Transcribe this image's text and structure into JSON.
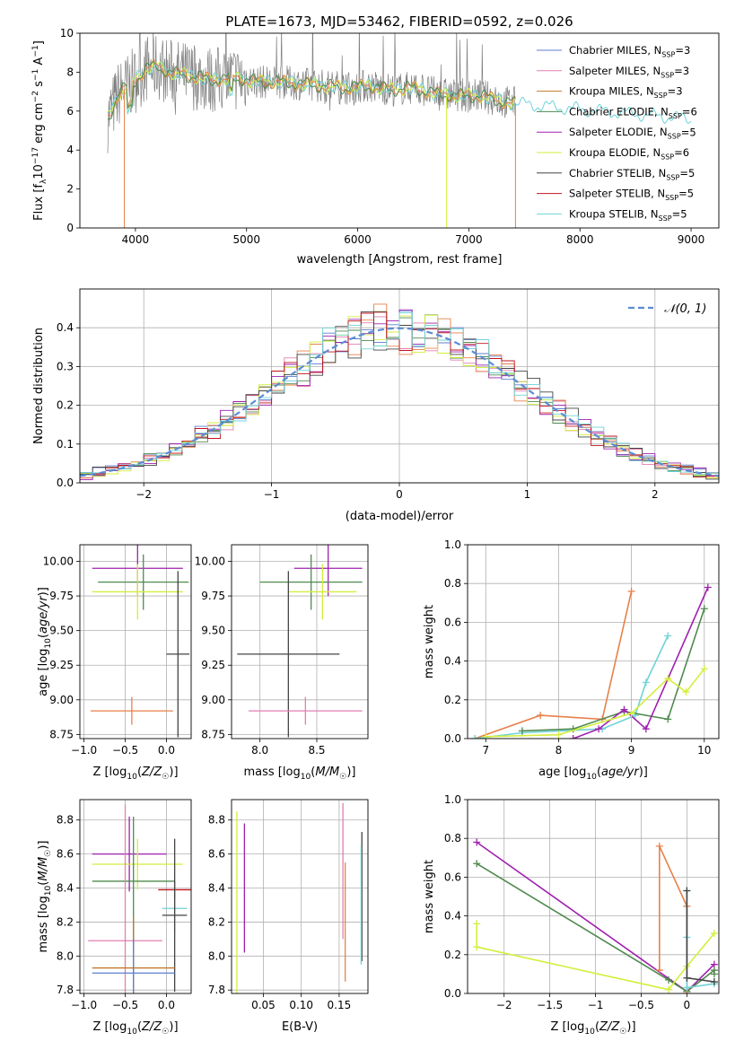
{
  "title": "PLATE=1673, MJD=53462, FIBERID=0592, z=0.026",
  "colors": {
    "chabrier_miles": "#5b7fd1",
    "salpeter_miles": "#e37fb0",
    "kroupa_miles": "#c0792a",
    "chabrier_elodie": "#4f8a4f",
    "salpeter_elodie": "#a020b0",
    "kroupa_elodie": "#d4ee3c",
    "chabrier_stelib": "#444444",
    "salpeter_stelib": "#c0141e",
    "kroupa_stelib": "#6fd3d6",
    "orange_mix": "#e8804a",
    "gauss": "#5a8cd4",
    "grid": "#b0b0b0"
  },
  "legend_spectrum": [
    {
      "text": "Chabrier MILES, N",
      "sub": "SSP",
      "tail": "=3"
    },
    {
      "text": "Salpeter MILES, N",
      "sub": "SSP",
      "tail": "=3"
    },
    {
      "text": "Kroupa MILES, N",
      "sub": "SSP",
      "tail": "=3"
    },
    {
      "text": "Chabrier ELODIE, N",
      "sub": "SSP",
      "tail": "=6"
    },
    {
      "text": "Salpeter ELODIE, N",
      "sub": "SSP",
      "tail": "=5"
    },
    {
      "text": "Kroupa ELODIE, N",
      "sub": "SSP",
      "tail": "=6"
    },
    {
      "text": "Chabrier STELIB, N",
      "sub": "SSP",
      "tail": "=5"
    },
    {
      "text": "Salpeter STELIB, N",
      "sub": "SSP",
      "tail": "=5"
    },
    {
      "text": "Kroupa STELIB, N",
      "sub": "SSP",
      "tail": "=5"
    }
  ],
  "legend_hist": "𝒩(0, 1)",
  "chart_data": [
    {
      "id": "spectrum",
      "type": "line",
      "xlabel": "wavelength [Angstrom, rest frame]",
      "ylabel": "Flux [f",
      "xlim": [
        3500,
        9250
      ],
      "ylim": [
        0,
        10
      ],
      "xticks": [
        4000,
        5000,
        6000,
        7000,
        8000,
        9000
      ],
      "yticks": [
        0,
        2,
        4,
        6,
        8,
        10
      ],
      "continuum": {
        "x": [
          3750,
          3850,
          4000,
          4100,
          4200,
          4300,
          4500,
          4700,
          4900,
          5100,
          5300,
          5500,
          5700,
          5900,
          6100,
          6300,
          6500,
          6700,
          6900,
          7100,
          7300,
          7420,
          7600,
          7800,
          8000,
          8200,
          8400,
          8600,
          8800,
          9000
        ],
        "y": [
          5.6,
          6.9,
          7.6,
          8.2,
          8.3,
          8.0,
          7.8,
          7.6,
          7.7,
          7.5,
          7.5,
          7.4,
          7.3,
          7.2,
          7.3,
          7.1,
          7.2,
          6.9,
          6.8,
          6.8,
          6.5,
          6.4,
          6.3,
          6.2,
          6.1,
          6.0,
          5.9,
          5.8,
          5.7,
          5.6
        ]
      }
    },
    {
      "id": "residual_hist",
      "type": "line",
      "xlabel": "(data-model)/error",
      "ylabel": "Normed distribution",
      "xlim": [
        -2.5,
        2.5
      ],
      "ylim": [
        0,
        0.5
      ],
      "xticks": [
        -2,
        -1,
        0,
        1,
        2
      ],
      "yticks": [
        0.0,
        0.1,
        0.2,
        0.3,
        0.4
      ]
    },
    {
      "id": "age_vs_Z",
      "type": "scatter",
      "xlabel": "Z [log10(Z/Z☉)]",
      "ylabel": "age  [log10(age/yr)]",
      "xlim": [
        -1.05,
        0.3
      ],
      "ylim": [
        8.72,
        10.12
      ],
      "xticks": [
        -1.0,
        -0.5,
        0.0
      ],
      "yticks": [
        8.75,
        9.0,
        9.25,
        9.5,
        9.75,
        10.0
      ],
      "points": [
        {
          "series": "salpeter_elodie",
          "x": -0.35,
          "y": 9.95,
          "xerr": 0.55,
          "yerr": 0.2
        },
        {
          "series": "chabrier_elodie",
          "x": -0.28,
          "y": 9.85,
          "xerr": 0.55,
          "yerr": 0.2
        },
        {
          "series": "kroupa_elodie",
          "x": -0.35,
          "y": 9.78,
          "xerr": 0.55,
          "yerr": 0.2
        },
        {
          "series": "chabrier_stelib",
          "x": 0.14,
          "y": 9.33,
          "xerr": 0.14,
          "yerr": 0.6
        },
        {
          "series": "orange_mix",
          "x": -0.42,
          "y": 8.92,
          "xerr": 0.5,
          "yerr": 0.1
        }
      ]
    },
    {
      "id": "age_vs_mass",
      "type": "scatter",
      "xlabel": "mass [log10(M/M☉)]",
      "ylabel": "",
      "xlim": [
        7.75,
        8.95
      ],
      "ylim": [
        8.72,
        10.12
      ],
      "xticks": [
        8.0,
        8.5
      ],
      "yticks": [
        8.75,
        9.0,
        9.25,
        9.5,
        9.75,
        10.0
      ],
      "points": [
        {
          "series": "salpeter_elodie",
          "x": 8.6,
          "y": 9.95,
          "xerr": 0.3,
          "yerr": 0.2
        },
        {
          "series": "chabrier_elodie",
          "x": 8.45,
          "y": 9.85,
          "xerr": 0.45,
          "yerr": 0.2
        },
        {
          "series": "kroupa_elodie",
          "x": 8.55,
          "y": 9.78,
          "xerr": 0.3,
          "yerr": 0.2
        },
        {
          "series": "chabrier_stelib",
          "x": 8.25,
          "y": 9.33,
          "xerr": 0.45,
          "yerr": 0.6
        },
        {
          "series": "salpeter_miles",
          "x": 8.4,
          "y": 8.92,
          "xerr": 0.5,
          "yerr": 0.1
        }
      ]
    },
    {
      "id": "massweight_vs_age",
      "type": "line",
      "xlabel": "age  [log10(age/yr)]",
      "ylabel": "mass weight",
      "xlim": [
        6.75,
        10.2
      ],
      "ylim": [
        0,
        1
      ],
      "xticks": [
        7,
        8,
        9,
        10
      ],
      "yticks": [
        0.0,
        0.2,
        0.4,
        0.6,
        0.8,
        1.0
      ],
      "series": [
        {
          "name": "orange_mix",
          "x": [
            6.85,
            7.75,
            8.6,
            9.0
          ],
          "y": [
            0.0,
            0.12,
            0.1,
            0.76
          ]
        },
        {
          "name": "kroupa_stelib",
          "x": [
            6.85,
            7.5,
            8.6,
            9.05,
            9.2,
            9.5
          ],
          "y": [
            0.0,
            0.03,
            0.05,
            0.12,
            0.29,
            0.53
          ]
        },
        {
          "name": "chabrier_elodie",
          "x": [
            7.5,
            8.2,
            8.9,
            9.5,
            10.0
          ],
          "y": [
            0.04,
            0.05,
            0.14,
            0.1,
            0.67
          ]
        },
        {
          "name": "salpeter_elodie",
          "x": [
            8.2,
            8.55,
            8.9,
            9.2,
            10.05
          ],
          "y": [
            0.0,
            0.05,
            0.15,
            0.05,
            0.78
          ]
        },
        {
          "name": "kroupa_elodie",
          "x": [
            7.0,
            8.0,
            9.0,
            9.5,
            9.75,
            10.0
          ],
          "y": [
            0.01,
            0.02,
            0.13,
            0.31,
            0.24,
            0.36
          ]
        }
      ]
    },
    {
      "id": "mass_vs_Z",
      "type": "scatter",
      "xlabel": "Z [log10(Z/Z☉)]",
      "ylabel": "mass [log10(M/M☉)]",
      "xlim": [
        -1.05,
        0.3
      ],
      "ylim": [
        7.78,
        8.92
      ],
      "xticks": [
        -1.0,
        -0.5,
        0.0
      ],
      "yticks": [
        7.8,
        8.0,
        8.2,
        8.4,
        8.6,
        8.8
      ],
      "points": [
        {
          "series": "salpeter_elodie",
          "x": -0.45,
          "y": 8.6,
          "xerr": 0.45,
          "yerr": 0.22
        },
        {
          "series": "kroupa_elodie",
          "x": -0.35,
          "y": 8.54,
          "xerr": 0.55,
          "yerr": 0.15
        },
        {
          "series": "chabrier_elodie",
          "x": -0.4,
          "y": 8.44,
          "xerr": 0.5,
          "yerr": 0.38
        },
        {
          "series": "salpeter_stelib",
          "x": 0.1,
          "y": 8.39,
          "xerr": 0.2,
          "yerr": 0.05
        },
        {
          "series": "kroupa_stelib",
          "x": 0.1,
          "y": 8.28,
          "xerr": 0.15,
          "yerr": 0.15
        },
        {
          "series": "chabrier_stelib",
          "x": 0.1,
          "y": 8.24,
          "xerr": 0.15,
          "yerr": 0.45
        },
        {
          "series": "salpeter_miles",
          "x": -0.5,
          "y": 8.09,
          "xerr": 0.45,
          "yerr": 0.8
        },
        {
          "series": "kroupa_miles",
          "x": -0.4,
          "y": 7.93,
          "xerr": 0.5,
          "yerr": 0.3
        },
        {
          "series": "chabrier_miles",
          "x": -0.4,
          "y": 7.9,
          "xerr": 0.5,
          "yerr": 0.2
        }
      ]
    },
    {
      "id": "mass_vs_ebv",
      "type": "scatter",
      "xlabel": "E(B-V)",
      "ylabel": "",
      "xlim": [
        0.008,
        0.188
      ],
      "ylim": [
        7.78,
        8.92
      ],
      "xticks": [
        0.05,
        0.1,
        0.15
      ],
      "yticks": [
        7.8,
        8.0,
        8.2,
        8.4,
        8.6,
        8.8
      ],
      "points": [
        {
          "series": "kroupa_elodie",
          "x": 0.015,
          "y": 8.3,
          "yerr": 0.55
        },
        {
          "series": "salpeter_elodie",
          "x": 0.025,
          "y": 8.4,
          "yerr": 0.38
        },
        {
          "series": "salpeter_miles",
          "x": 0.155,
          "y": 8.5,
          "yerr": 0.4
        },
        {
          "series": "orange_mix",
          "x": 0.158,
          "y": 8.2,
          "yerr": 0.35
        },
        {
          "series": "chabrier_stelib",
          "x": 0.18,
          "y": 8.35,
          "yerr": 0.38
        },
        {
          "series": "kroupa_stelib",
          "x": 0.179,
          "y": 8.3,
          "yerr": 0.35
        }
      ]
    },
    {
      "id": "massweight_vs_Z",
      "type": "line",
      "xlabel": "Z [log10(Z/Z☉)]",
      "ylabel": "mass weight",
      "xlim": [
        -2.4,
        0.35
      ],
      "ylim": [
        0,
        1
      ],
      "xticks": [
        -2.0,
        -1.5,
        -1.0,
        -0.5,
        0.0
      ],
      "yticks": [
        0.0,
        0.2,
        0.4,
        0.6,
        0.8,
        1.0
      ],
      "series": [
        {
          "name": "salpeter_elodie",
          "x": [
            -2.3,
            0.0,
            0.3
          ],
          "y": [
            0.78,
            0.01,
            0.15
          ]
        },
        {
          "name": "chabrier_elodie",
          "x": [
            -2.3,
            -0.2,
            0.0,
            0.3,
            0.3
          ],
          "y": [
            0.67,
            0.07,
            0.01,
            0.12,
            0.1
          ]
        },
        {
          "name": "kroupa_elodie",
          "x": [
            -2.3,
            -2.3,
            -0.2,
            0.0,
            0.3
          ],
          "y": [
            0.36,
            0.24,
            0.02,
            0.14,
            0.31
          ]
        },
        {
          "name": "orange_mix",
          "x": [
            -0.3,
            -0.3,
            0.0,
            0.0
          ],
          "y": [
            0.12,
            0.76,
            0.45,
            0.0
          ]
        },
        {
          "name": "kroupa_stelib",
          "x": [
            0.0,
            0.0,
            0.0,
            0.3
          ],
          "y": [
            0.53,
            0.29,
            0.03,
            0.05
          ]
        },
        {
          "name": "chabrier_stelib",
          "x": [
            0.0,
            0.0,
            0.3
          ],
          "y": [
            0.53,
            0.08,
            0.06
          ]
        }
      ]
    }
  ]
}
